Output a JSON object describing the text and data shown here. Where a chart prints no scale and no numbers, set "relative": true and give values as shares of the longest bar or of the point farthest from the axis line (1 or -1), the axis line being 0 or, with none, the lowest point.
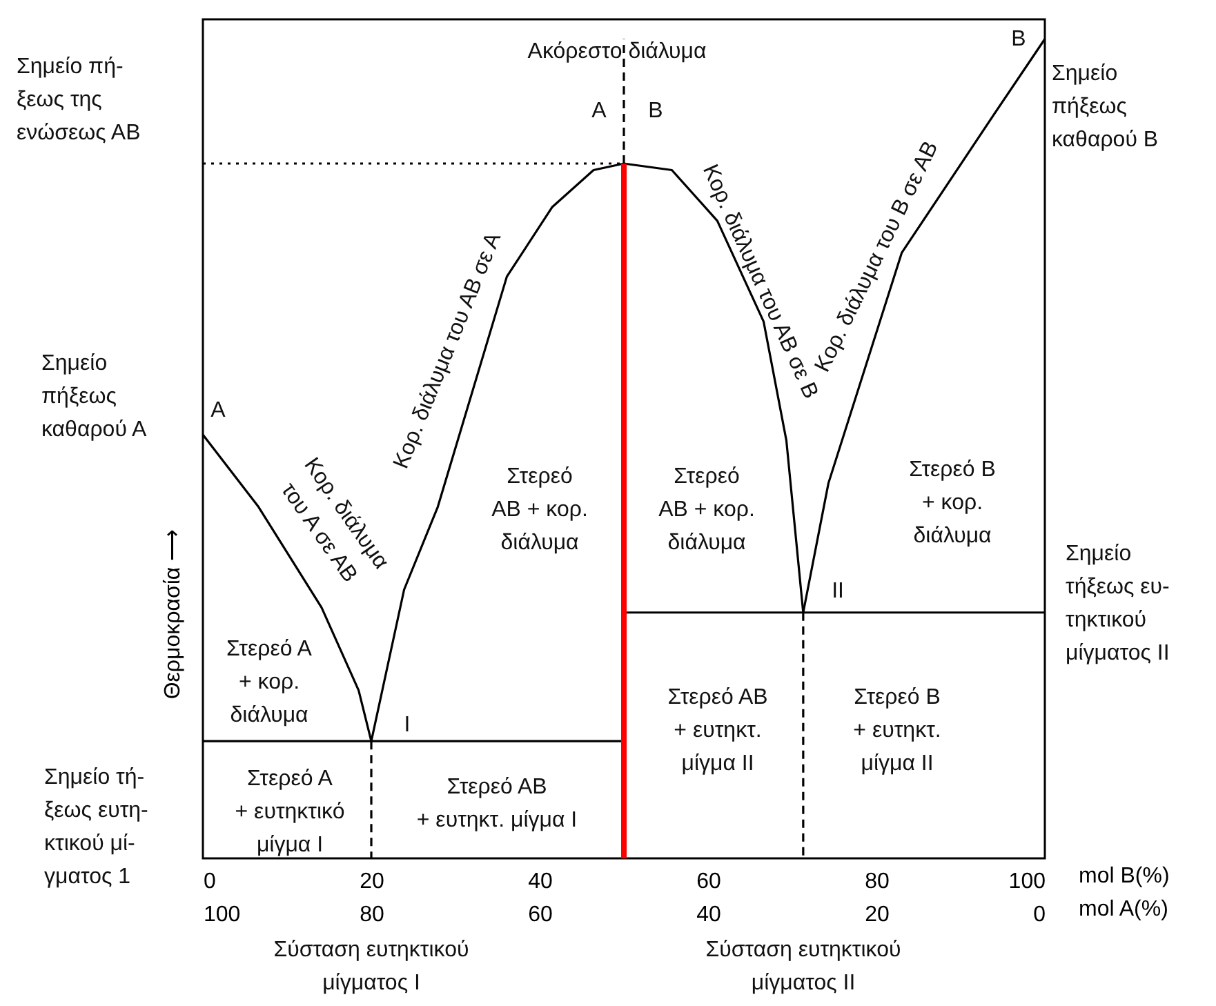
{
  "chart_data": {
    "type": "line",
    "relative": true,
    "xlim": [
      0,
      100
    ],
    "xticks": [
      0,
      20,
      40,
      60,
      80,
      100
    ],
    "xlabel": "mol B(%)",
    "x2lim": [
      100,
      0
    ],
    "x2ticks": [
      100,
      80,
      60,
      40,
      20,
      0
    ],
    "x2label": "mol A(%)",
    "ylabel": "Θερμοκρασία ⟶",
    "series": [
      {
        "color": "#000000",
        "x": [
          0,
          6.6,
          14.1,
          18.5,
          20
        ],
        "values": [
          0.517,
          0.429,
          0.306,
          0.205,
          0.143
        ]
      },
      {
        "color": "#000000",
        "x": [
          20,
          23.9,
          27.9,
          36.1,
          41.5,
          46.4,
          50,
          55.7,
          61.1,
          66.6,
          69.3,
          71.3
        ],
        "values": [
          0.143,
          0.328,
          0.429,
          0.71,
          0.795,
          0.84,
          0.848,
          0.84,
          0.778,
          0.655,
          0.51,
          0.3
        ]
      },
      {
        "color": "#000000",
        "x": [
          71.3,
          74.3,
          83,
          93.9,
          100
        ],
        "values": [
          0.3,
          0.458,
          0.739,
          0.907,
          1
        ]
      },
      {
        "color": "#000000",
        "x": [
          0,
          50
        ],
        "values": [
          0.143,
          0.143
        ]
      },
      {
        "color": "#000000",
        "x": [
          50,
          100
        ],
        "values": [
          0.3,
          0.3
        ]
      },
      {
        "color": "#ff0000",
        "x": [
          50,
          50
        ],
        "values": [
          0,
          0.848
        ]
      },
      {
        "color": "#000000",
        "x": [
          50,
          50
        ],
        "values": [
          0.848,
          1
        ],
        "line_style": "dashed"
      },
      {
        "color": "#000000",
        "x": [
          71.3,
          71.3
        ],
        "values": [
          0.3,
          0
        ],
        "line_style": "dashed"
      },
      {
        "color": "#000000",
        "x": [
          20,
          20
        ],
        "values": [
          0.143,
          0
        ],
        "line_style": "dashed"
      },
      {
        "color": "#000000",
        "x": [
          0,
          50
        ],
        "values": [
          0.848,
          0.848
        ],
        "line_style": "dotted"
      }
    ],
    "annotations": [
      "Ακόρεστο διάλυμα",
      "Α",
      "Β",
      "Β",
      "Α",
      "I",
      "II",
      "Στερεό\nΑΒ + κορ.\nδιάλυμα",
      "Στερεό\nΑΒ + κορ.\nδιάλυμα",
      "Στερεό Β\n+ κορ.\nδιάλυμα",
      "Στερεό Α\n+ κορ.\nδιάλυμα",
      "Στερεό ΑΒ\n+ ευτηκτ.\nμίγμα ΙΙ",
      "Στερεό Β\n+ ευτηκτ.\nμίγμα ΙΙ",
      "Στερεό Α\n+ ευτηκτικό\nμίγμα Ι",
      "Στερεό ΑΒ\n+ ευτηκτ. μίγμα Ι",
      "Κορ. διάλυμα\nτου Α σε ΑΒ",
      "Κορ. διάλυμα του ΑΒ σε Α",
      "Κορ. διάλυμα του ΑΒ σε Β",
      "Κορ. διάλυμα του Β σε ΑΒ",
      "Σημείο πή-\nξεως της\nενώσεως ΑΒ",
      "Σημείο\nπήξεως\nκαθαρού Α",
      "Σημείο τή-\nξεως ευτη-\nκτικού μί-\nγματος 1",
      "Σημείο\nπήξεως\nκαθαρού Β",
      "Σημείο\nτήξεως ευ-\nτηκτικού\nμίγματος ΙΙ",
      "Σύσταση ευτηκτικού\nμίγματος Ι",
      "Σύσταση ευτηκτικού\nμίγματος ΙΙ"
    ]
  }
}
